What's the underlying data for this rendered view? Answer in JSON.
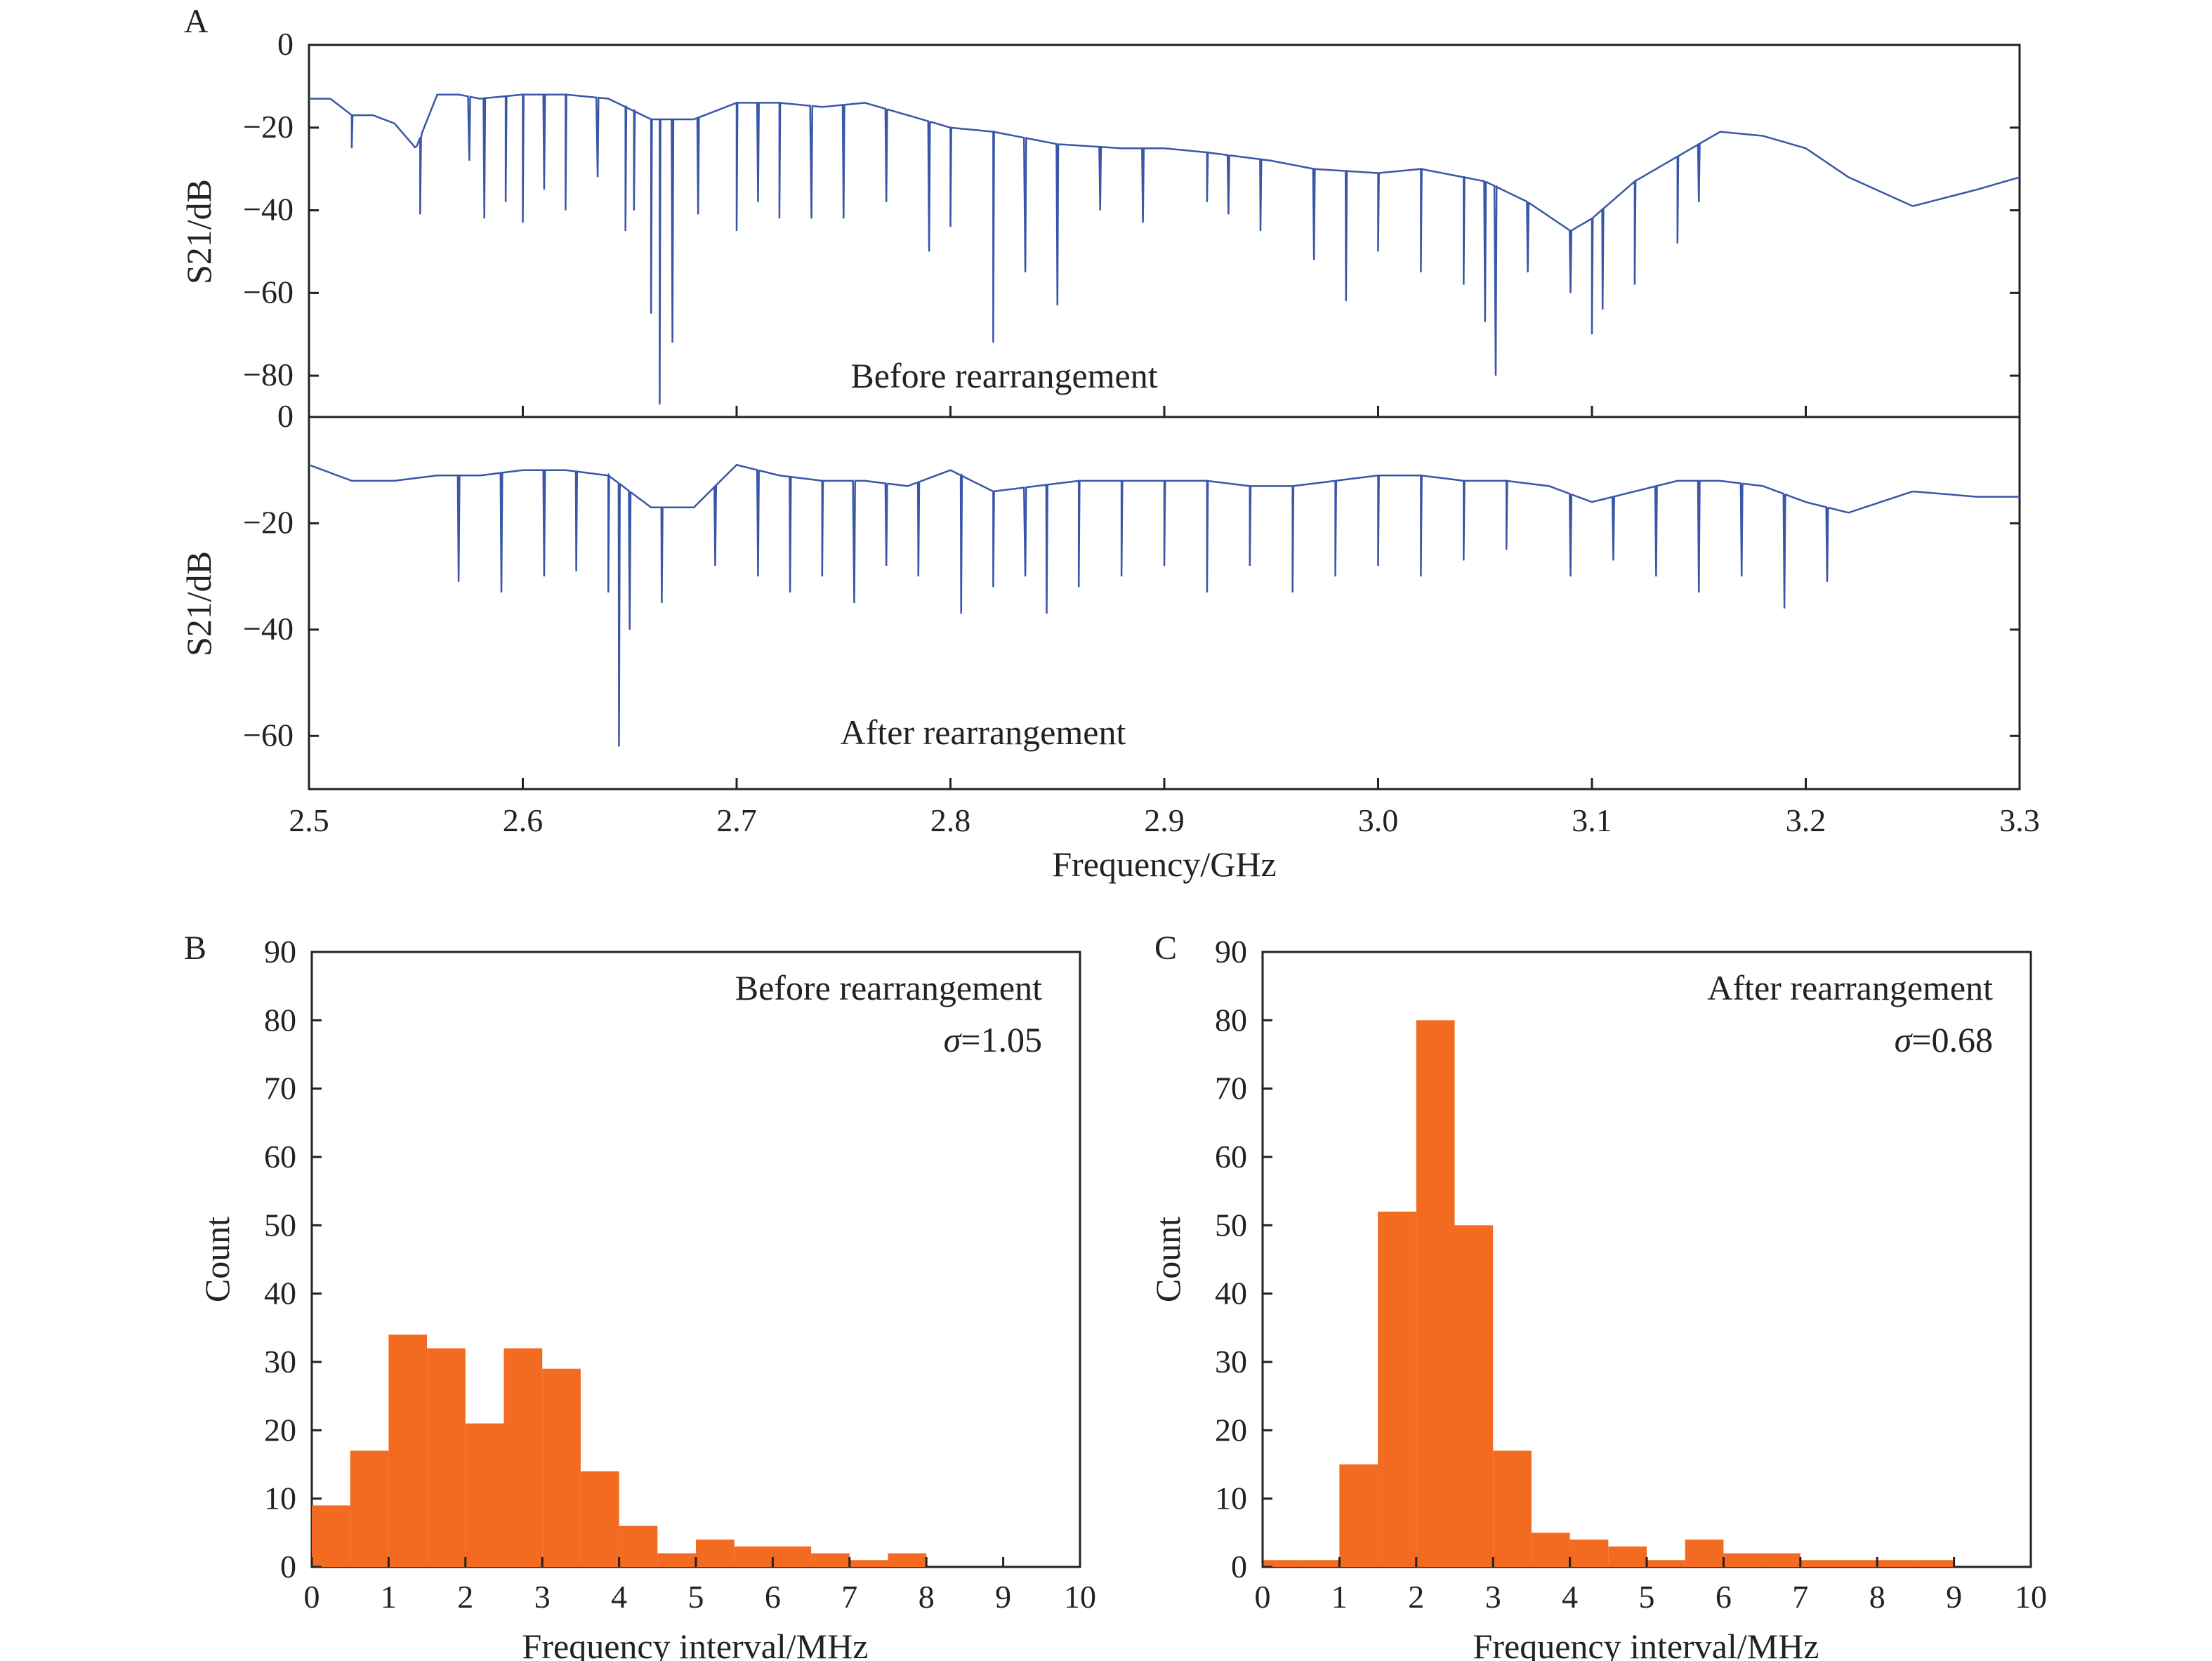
{
  "chart_data": [
    {
      "panel": "A",
      "type": "line",
      "subplots": [
        {
          "annotation": "Before rearrangement",
          "ylabel": "S21/dB",
          "ylim": [
            -90,
            0
          ],
          "yticks": [
            0,
            -20,
            -40,
            -60,
            -80
          ],
          "baseline": {
            "x": [
              2.5,
              2.51,
              2.52,
              2.53,
              2.54,
              2.55,
              2.56,
              2.57,
              2.58,
              2.6,
              2.62,
              2.64,
              2.66,
              2.68,
              2.7,
              2.72,
              2.74,
              2.76,
              2.78,
              2.8,
              2.82,
              2.85,
              2.88,
              2.9,
              2.92,
              2.95,
              2.97,
              3.0,
              3.02,
              3.05,
              3.07,
              3.09,
              3.1,
              3.12,
              3.15,
              3.16,
              3.18,
              3.2,
              3.22,
              3.25,
              3.28,
              3.3
            ],
            "y": [
              -13,
              -13,
              -17,
              -17,
              -19,
              -25,
              -12,
              -12,
              -13,
              -12,
              -12,
              -13,
              -18,
              -18,
              -14,
              -14,
              -15,
              -14,
              -17,
              -20,
              -21,
              -24,
              -25,
              -25,
              -26,
              -28,
              -30,
              -31,
              -30,
              -33,
              -38,
              -45,
              -42,
              -33,
              -24,
              -21,
              -22,
              -25,
              -32,
              -39,
              -35,
              -32
            ]
          },
          "notches": {
            "x": [
              2.52,
              2.552,
              2.575,
              2.582,
              2.592,
              2.6,
              2.61,
              2.62,
              2.635,
              2.648,
              2.652,
              2.66,
              2.664,
              2.67,
              2.682,
              2.7,
              2.71,
              2.72,
              2.735,
              2.75,
              2.77,
              2.79,
              2.8,
              2.82,
              2.835,
              2.85,
              2.87,
              2.89,
              2.92,
              2.93,
              2.945,
              2.97,
              2.985,
              3.0,
              3.02,
              3.04,
              3.05,
              3.055,
              3.07,
              3.09,
              3.1,
              3.105,
              3.12,
              3.14,
              3.15
            ],
            "y": [
              -25,
              -41,
              -28,
              -42,
              -38,
              -43,
              -35,
              -40,
              -32,
              -45,
              -40,
              -65,
              -87,
              -72,
              -41,
              -45,
              -38,
              -42,
              -42,
              -42,
              -38,
              -50,
              -44,
              -72,
              -55,
              -63,
              -40,
              -43,
              -38,
              -41,
              -45,
              -52,
              -62,
              -50,
              -55,
              -58,
              -67,
              -80,
              -55,
              -60,
              -70,
              -64,
              -58,
              -48,
              -38
            ]
          }
        },
        {
          "annotation": "After rearrangement",
          "ylabel": "S21/dB",
          "ylim": [
            -70,
            0
          ],
          "yticks": [
            0,
            -20,
            -40,
            -60
          ],
          "baseline": {
            "x": [
              2.5,
              2.52,
              2.54,
              2.56,
              2.58,
              2.6,
              2.62,
              2.64,
              2.66,
              2.68,
              2.7,
              2.72,
              2.74,
              2.76,
              2.78,
              2.8,
              2.82,
              2.84,
              2.86,
              2.88,
              2.9,
              2.92,
              2.94,
              2.96,
              2.98,
              3.0,
              3.02,
              3.04,
              3.06,
              3.08,
              3.1,
              3.12,
              3.14,
              3.16,
              3.18,
              3.2,
              3.22,
              3.25,
              3.28,
              3.3
            ],
            "y": [
              -9,
              -12,
              -12,
              -11,
              -11,
              -10,
              -10,
              -11,
              -17,
              -17,
              -9,
              -11,
              -12,
              -12,
              -13,
              -10,
              -14,
              -13,
              -12,
              -12,
              -12,
              -12,
              -13,
              -13,
              -12,
              -11,
              -11,
              -12,
              -12,
              -13,
              -16,
              -14,
              -12,
              -12,
              -13,
              -16,
              -18,
              -14,
              -15,
              -15
            ]
          },
          "notches": {
            "x": [
              2.57,
              2.59,
              2.61,
              2.625,
              2.64,
              2.645,
              2.65,
              2.665,
              2.69,
              2.71,
              2.725,
              2.74,
              2.755,
              2.77,
              2.785,
              2.805,
              2.82,
              2.835,
              2.845,
              2.86,
              2.88,
              2.9,
              2.92,
              2.94,
              2.96,
              2.98,
              3.0,
              3.02,
              3.04,
              3.06,
              3.09,
              3.11,
              3.13,
              3.15,
              3.17,
              3.19,
              3.21
            ],
            "y": [
              -31,
              -33,
              -30,
              -29,
              -33,
              -62,
              -40,
              -35,
              -28,
              -30,
              -33,
              -30,
              -35,
              -28,
              -30,
              -37,
              -32,
              -30,
              -37,
              -32,
              -30,
              -28,
              -33,
              -28,
              -33,
              -30,
              -28,
              -30,
              -27,
              -25,
              -30,
              -27,
              -30,
              -33,
              -30,
              -36,
              -31
            ]
          }
        }
      ],
      "xlabel": "Frequency/GHz",
      "xlim": [
        2.5,
        3.3
      ],
      "xticks": [
        "2.5",
        "2.6",
        "2.7",
        "2.8",
        "2.9",
        "3.0",
        "3.1",
        "3.2",
        "3.3"
      ]
    },
    {
      "panel": "B",
      "type": "bar",
      "annotation": "Before rearrangement",
      "sigma": "=1.05",
      "xlabel": "Frequency interval/MHz",
      "ylabel": "Count",
      "xlim": [
        0,
        10
      ],
      "ylim": [
        0,
        90
      ],
      "bin_width": 0.5,
      "bin_starts": [
        0,
        0.5,
        1,
        1.5,
        2,
        2.5,
        3,
        3.5,
        4,
        4.5,
        5,
        5.5,
        6,
        6.5,
        7,
        7.5,
        8,
        8.5,
        9,
        9.5
      ],
      "values": [
        9,
        17,
        34,
        32,
        21,
        32,
        29,
        14,
        6,
        2,
        4,
        3,
        3,
        2,
        1,
        2,
        0,
        0,
        0,
        0
      ],
      "xticks": [
        "0",
        "1",
        "2",
        "3",
        "4",
        "5",
        "6",
        "7",
        "8",
        "9",
        "10"
      ],
      "yticks": [
        "0",
        "10",
        "20",
        "30",
        "40",
        "50",
        "60",
        "70",
        "80",
        "90"
      ]
    },
    {
      "panel": "C",
      "type": "bar",
      "annotation": "After rearrangement",
      "sigma": "=0.68",
      "xlabel": "Frequency interval/MHz",
      "ylabel": "Count",
      "xlim": [
        0,
        10
      ],
      "ylim": [
        0,
        90
      ],
      "bin_width": 0.5,
      "bin_starts": [
        0,
        0.5,
        1,
        1.5,
        2,
        2.5,
        3,
        3.5,
        4,
        4.5,
        5,
        5.5,
        6,
        6.5,
        7,
        7.5,
        8,
        8.5,
        9,
        9.5
      ],
      "values": [
        1,
        1,
        15,
        52,
        80,
        50,
        17,
        5,
        4,
        3,
        1,
        4,
        2,
        2,
        1,
        1,
        1,
        1,
        0,
        0
      ],
      "xticks": [
        "0",
        "1",
        "2",
        "3",
        "4",
        "5",
        "6",
        "7",
        "8",
        "9",
        "10"
      ],
      "yticks": [
        "0",
        "10",
        "20",
        "30",
        "40",
        "50",
        "60",
        "70",
        "80",
        "90"
      ]
    }
  ],
  "colors": {
    "line": "#3a56a8",
    "bar": "#f26b21",
    "axis": "#222222"
  },
  "labels": {
    "sigma_symbol": "σ"
  }
}
